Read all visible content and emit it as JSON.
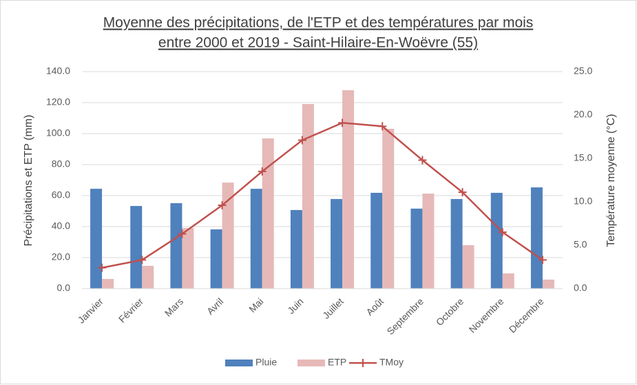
{
  "chart_data": {
    "type": "bar_line",
    "title": [
      "Moyenne des précipitations, de l'ETP et des températures par mois",
      "entre 2000 et 2019 - Saint-Hilaire-En-Woëvre (55)"
    ],
    "y_label": "Précipitations et ETP (mm)",
    "y2_label": "Température moyenne (°C)",
    "categories": [
      "Janvier",
      "Février",
      "Mars",
      "Avril",
      "Mai",
      "Juin",
      "Juillet",
      "Août",
      "Septembre",
      "Octobre",
      "Novembre",
      "Décembre"
    ],
    "series": [
      {
        "name": "Pluie",
        "type": "bar",
        "color": "#4f81bd",
        "values": [
          64.4,
          53.3,
          55.1,
          38.2,
          64.4,
          50.7,
          57.8,
          61.8,
          51.6,
          57.8,
          61.8,
          65.3
        ]
      },
      {
        "name": "ETP",
        "type": "bar",
        "color": "#e6b9b8",
        "values": [
          6.2,
          14.7,
          39.1,
          68.4,
          96.9,
          119.1,
          128.0,
          103.1,
          61.3,
          28.0,
          9.8,
          5.8
        ]
      },
      {
        "name": "TMoy",
        "type": "line",
        "axis": "y2",
        "color": "#c0504d",
        "values": [
          2.4,
          3.3,
          6.3,
          9.6,
          13.5,
          17.1,
          19.1,
          18.7,
          14.8,
          11.1,
          6.5,
          3.3
        ]
      }
    ],
    "ylim": [
      0,
      140
    ],
    "yticks": [
      {
        "value": 0,
        "label": "0.0"
      },
      {
        "value": 20,
        "label": "20.0"
      },
      {
        "value": 40,
        "label": "40.0"
      },
      {
        "value": 60,
        "label": "60.0"
      },
      {
        "value": 80,
        "label": "80.0"
      },
      {
        "value": 100,
        "label": "100.0"
      },
      {
        "value": 120,
        "label": "120.0"
      },
      {
        "value": 140,
        "label": "140.0"
      }
    ],
    "y2lim": [
      0,
      25
    ],
    "y2ticks": [
      {
        "value": 0,
        "label": "0.0"
      },
      {
        "value": 5,
        "label": "5.0"
      },
      {
        "value": 10,
        "label": "10.0"
      },
      {
        "value": 15,
        "label": "15.0"
      },
      {
        "value": 20,
        "label": "20.0"
      },
      {
        "value": 25,
        "label": "25.0"
      }
    ],
    "grid": true,
    "legend": "bottom"
  }
}
